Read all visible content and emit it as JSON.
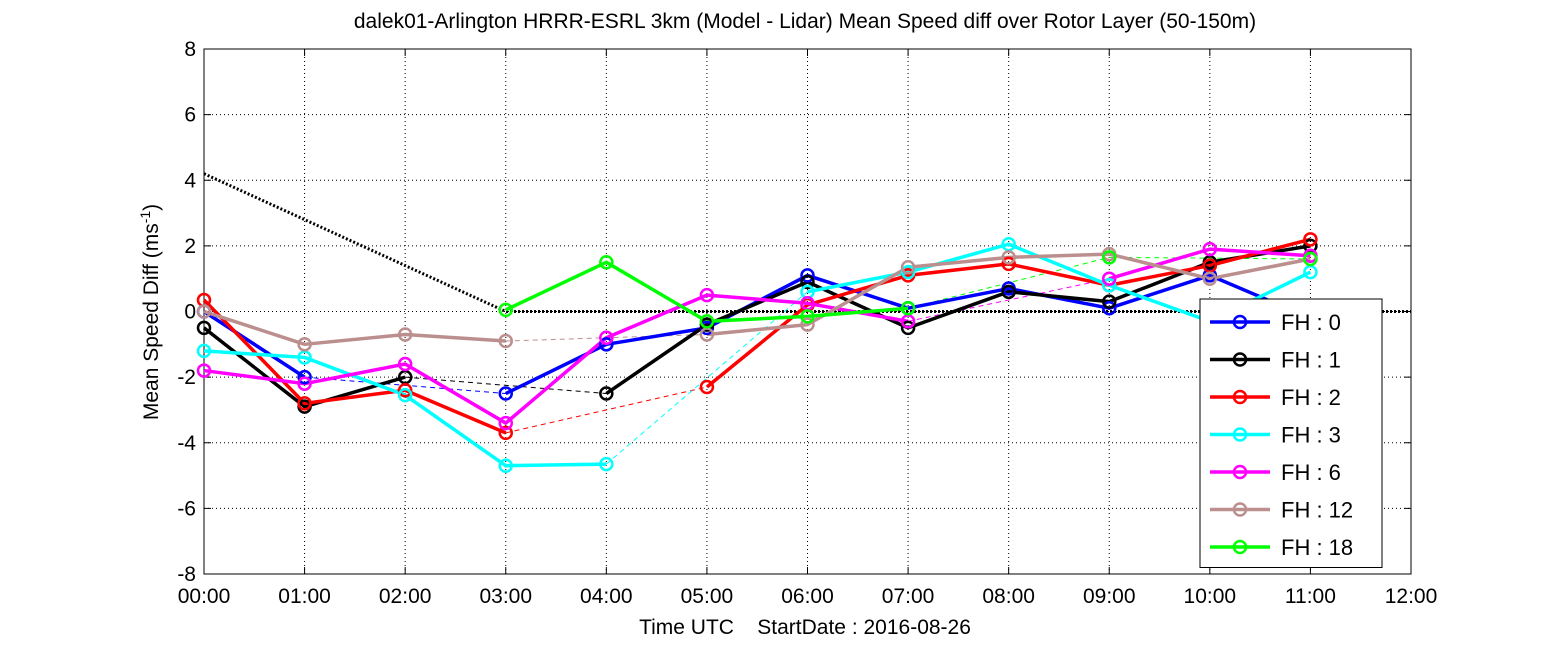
{
  "chart_data": {
    "type": "line",
    "title": "dalek01-Arlington HRRR-ESRL 3km (Model - Lidar) Mean Speed diff over Rotor Layer (50-150m)",
    "xlabel": "Time UTC    StartDate : 2016-08-26",
    "ylabel": "Mean Speed Diff (ms",
    "ylabel_sup": "-1",
    "ylabel_close": ")",
    "xlim": [
      0,
      12
    ],
    "ylim": [
      -8,
      8
    ],
    "x_ticks": [
      0,
      1,
      2,
      3,
      4,
      5,
      6,
      7,
      8,
      9,
      10,
      11,
      12
    ],
    "x_tick_labels": [
      "00:00",
      "01:00",
      "02:00",
      "03:00",
      "04:00",
      "05:00",
      "06:00",
      "07:00",
      "08:00",
      "09:00",
      "10:00",
      "11:00",
      "12:00"
    ],
    "y_ticks": [
      -8,
      -6,
      -4,
      -2,
      0,
      2,
      4,
      6,
      8
    ],
    "y_tick_labels": [
      "-8",
      "-6",
      "-4",
      "-2",
      "0",
      "2",
      "4",
      "6",
      "8"
    ],
    "grid": true,
    "legend_position": "bottom-right",
    "reference_lines": [
      {
        "style": "dotted",
        "color": "#000000",
        "x": [
          0,
          3,
          12
        ],
        "y": [
          4.2,
          0,
          0
        ]
      }
    ],
    "series": [
      {
        "name": "FH : 0",
        "color": "#0000ff",
        "x": [
          0,
          1,
          2,
          3,
          4,
          5,
          6,
          7,
          8,
          9,
          10,
          11
        ],
        "y": [
          0.0,
          -2.0,
          null,
          -2.5,
          -1.0,
          -0.5,
          1.1,
          0.1,
          0.7,
          0.1,
          1.1,
          -0.2
        ]
      },
      {
        "name": "FH : 1",
        "color": "#000000",
        "x": [
          0,
          1,
          2,
          3,
          4,
          5,
          6,
          7,
          8,
          9,
          10,
          11
        ],
        "y": [
          -0.5,
          -2.9,
          -2.0,
          null,
          -2.5,
          -0.4,
          0.9,
          -0.5,
          0.6,
          0.3,
          1.5,
          2.0
        ]
      },
      {
        "name": "FH : 2",
        "color": "#ff0000",
        "x": [
          0,
          1,
          2,
          3,
          4,
          5,
          6,
          7,
          8,
          9,
          10,
          11
        ],
        "y": [
          0.35,
          -2.8,
          -2.4,
          -3.7,
          null,
          -2.3,
          0.2,
          1.1,
          1.45,
          0.8,
          1.4,
          2.2
        ]
      },
      {
        "name": "FH : 3",
        "color": "#00ffff",
        "x": [
          0,
          1,
          2,
          3,
          4,
          5,
          6,
          7,
          8,
          9,
          10,
          11
        ],
        "y": [
          -1.2,
          -1.4,
          -2.55,
          -4.7,
          -4.65,
          null,
          0.6,
          1.2,
          2.05,
          0.8,
          -0.3,
          1.2
        ]
      },
      {
        "name": "FH : 6",
        "color": "#ff00ff",
        "x": [
          0,
          1,
          2,
          3,
          4,
          5,
          6,
          7,
          8,
          9,
          10,
          11
        ],
        "y": [
          -1.8,
          -2.2,
          -1.6,
          -3.4,
          -0.8,
          0.5,
          0.25,
          -0.3,
          null,
          1.0,
          1.9,
          1.7
        ]
      },
      {
        "name": "FH : 12",
        "color": "#bc8f8f",
        "x": [
          0,
          1,
          2,
          3,
          4,
          5,
          6,
          7,
          8,
          9,
          10,
          11
        ],
        "y": [
          0.0,
          -1.0,
          -0.7,
          -0.9,
          null,
          -0.7,
          -0.4,
          1.35,
          1.65,
          1.75,
          1.0,
          1.6
        ]
      },
      {
        "name": "FH : 18",
        "color": "#00ff00",
        "x": [
          0,
          1,
          2,
          3,
          4,
          5,
          6,
          7,
          8,
          9,
          10,
          11
        ],
        "y": [
          null,
          null,
          null,
          0.05,
          1.5,
          -0.3,
          -0.15,
          0.1,
          null,
          1.65,
          null,
          1.6
        ]
      }
    ]
  }
}
